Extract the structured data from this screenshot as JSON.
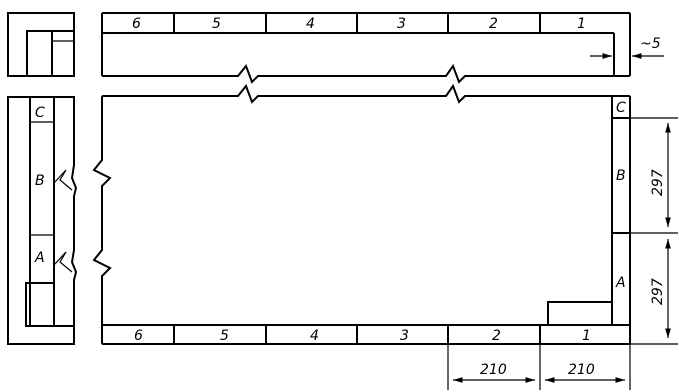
{
  "zones_top": [
    "6",
    "5",
    "4",
    "3",
    "2",
    "1"
  ],
  "zones_bottom": [
    "6",
    "5",
    "4",
    "3",
    "2",
    "1"
  ],
  "rows_right": [
    "C",
    "B",
    "A"
  ],
  "rows_left": [
    "C",
    "B",
    "A"
  ],
  "dimensions": {
    "gap": "~5",
    "height_upper": "297",
    "height_lower": "297",
    "width_left": "210",
    "width_right": "210"
  }
}
